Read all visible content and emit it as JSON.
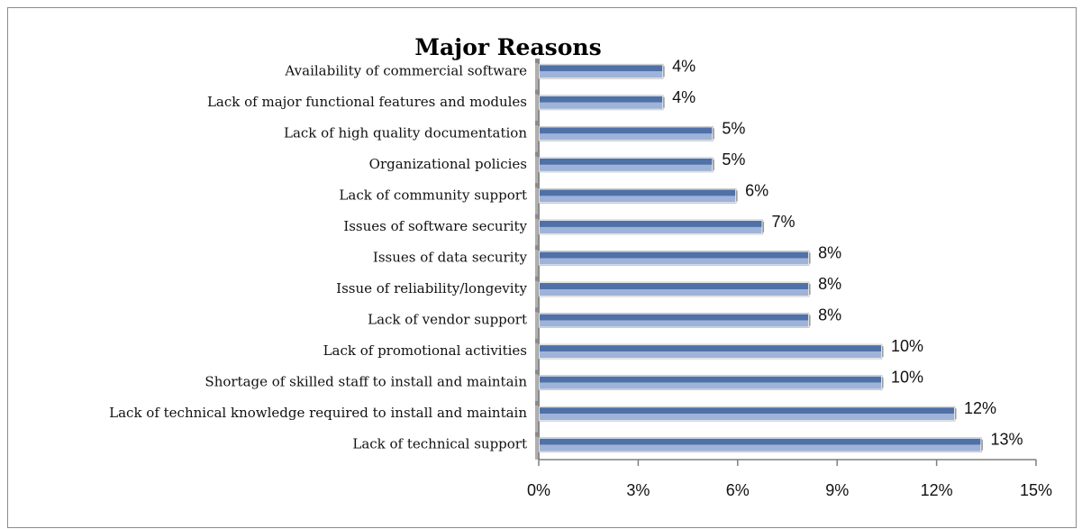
{
  "chart_data": {
    "type": "bar",
    "orientation": "horizontal",
    "title": "Major Reasons",
    "categories": [
      "Availability of commercial software",
      "Lack of major functional features and modules",
      "Lack of high quality documentation",
      "Organizational policies",
      "Lack of community support",
      "Issues of software security",
      "Issues of data security",
      "Issue of reliability/longevity",
      "Lack of vendor support",
      "Lack of promotional activities",
      "Shortage of skilled staff to install and maintain",
      "Lack of technical knowledge required to install and maintain",
      "Lack of technical support"
    ],
    "values": [
      3.7,
      3.7,
      5.2,
      5.2,
      5.9,
      6.7,
      8.1,
      8.1,
      8.1,
      10.3,
      10.3,
      12.5,
      13.3
    ],
    "data_labels": [
      "4%",
      "4%",
      "5%",
      "5%",
      "6%",
      "7%",
      "8%",
      "8%",
      "8%",
      "10%",
      "10%",
      "12%",
      "13%"
    ],
    "xlim": [
      0,
      15
    ],
    "x_ticks": [
      0,
      3,
      6,
      9,
      12,
      15
    ],
    "x_tick_labels": [
      "0%",
      "3%",
      "6%",
      "9%",
      "12%",
      "15%"
    ],
    "xlabel": "",
    "ylabel": "",
    "grid": false,
    "legend": "none",
    "colors": {
      "bar_dark": "#4f71a8",
      "bar_light": "#9fb3d9",
      "axis": "#7f7f7f"
    }
  }
}
